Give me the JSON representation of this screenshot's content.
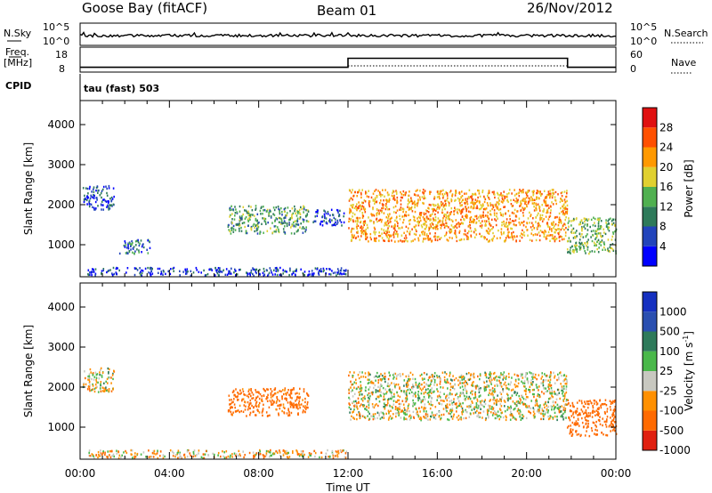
{
  "header": {
    "station": "Goose Bay (fitACF)",
    "beam": "Beam 01",
    "date": "26/Nov/2012"
  },
  "side_labels": {
    "nsky": "N.Sky",
    "nsearch": "N.Search",
    "freq_line1": "Freq.",
    "freq_line2": "[MHz]",
    "nave": "Nave",
    "cpid": "CPID",
    "cpid_value": "tau (fast) 503"
  },
  "colors": {
    "power_scale": [
      "#0000ff",
      "#2244bb",
      "#2e7a5a",
      "#50b050",
      "#e0d030",
      "#ff9900",
      "#ff5000",
      "#e01010"
    ],
    "velocity_scale": [
      "#1530c0",
      "#2a4fb0",
      "#2e7a5a",
      "#4ab84a",
      "#c8c8c0",
      "#ff9000",
      "#ff6a00",
      "#e02010"
    ]
  },
  "chart_data": [
    {
      "type": "line",
      "panel": "noise",
      "left_axis": {
        "label": "N.Sky",
        "ticks": [
          "10^5",
          "10^0"
        ]
      },
      "right_axis": {
        "label": "N.Search",
        "ticks": [
          "10^5",
          "10^0"
        ]
      },
      "series": [
        {
          "name": "N.Sky",
          "style": "solid",
          "values": "noise trace near 10^1 level across the day"
        },
        {
          "name": "N.Search",
          "style": "dotted"
        }
      ]
    },
    {
      "type": "line",
      "panel": "frequency",
      "left_axis": {
        "label": "Freq. [MHz]",
        "ticks": [
          8,
          18
        ]
      },
      "right_axis": {
        "label": "Nave",
        "ticks": [
          0,
          60
        ]
      },
      "series": [
        {
          "name": "Freq.",
          "x": [
            "00:00",
            "12:00",
            "12:00",
            "21:50",
            "21:50",
            "24:00"
          ],
          "y": [
            8.9,
            8.9,
            15.2,
            15.2,
            8.9,
            8.9
          ]
        },
        {
          "name": "Nave",
          "style": "dotted",
          "x": [
            "00:00",
            "24:00"
          ],
          "y": [
            8,
            8
          ]
        }
      ]
    },
    {
      "type": "heatmap",
      "panel": "power",
      "ylabel": "Slant Range [km]",
      "yticks": [
        1000,
        2000,
        3000,
        4000
      ],
      "ylim": [
        200,
        4600
      ],
      "xticks": [
        "00:00",
        "04:00",
        "08:00",
        "12:00",
        "16:00",
        "20:00",
        "00:00"
      ],
      "colorbar": {
        "label": "Power [dB]",
        "ticks": [
          4,
          8,
          12,
          16,
          20,
          24,
          28
        ]
      },
      "echo_regions": [
        {
          "t0": 0.1,
          "t1": 1.5,
          "r0": 1900,
          "r1": 2500,
          "power_db": 6
        },
        {
          "t0": 1.7,
          "t1": 3.1,
          "r0": 800,
          "r1": 1150,
          "power_db": 8
        },
        {
          "t0": 6.6,
          "t1": 10.2,
          "r0": 1300,
          "r1": 2000,
          "power_db": 12
        },
        {
          "t0": 10.4,
          "t1": 11.8,
          "r0": 1500,
          "r1": 1900,
          "power_db": 6
        },
        {
          "t0": 12.0,
          "t1": 21.8,
          "r0": 1100,
          "r1": 2400,
          "power_db": 22
        },
        {
          "t0": 21.8,
          "t1": 24.0,
          "r0": 800,
          "r1": 1700,
          "power_db": 14
        },
        {
          "t0": 0.3,
          "t1": 11.9,
          "r0": 250,
          "r1": 450,
          "power_db": 5
        }
      ]
    },
    {
      "type": "heatmap",
      "panel": "velocity",
      "ylabel": "Slant Range [km]",
      "yticks": [
        1000,
        2000,
        3000,
        4000
      ],
      "ylim": [
        200,
        4600
      ],
      "xticks": [
        "00:00",
        "04:00",
        "08:00",
        "12:00",
        "16:00",
        "20:00",
        "00:00"
      ],
      "xlabel": "Time UT",
      "colorbar": {
        "label": "Velocity [m s^-1]",
        "ticks": [
          1000,
          500,
          100,
          25,
          -25,
          -100,
          -500,
          -1000
        ]
      },
      "echo_regions": [
        {
          "t0": 0.1,
          "t1": 1.5,
          "r0": 1900,
          "r1": 2500,
          "velocity": 0
        },
        {
          "t0": 6.6,
          "t1": 10.2,
          "r0": 1300,
          "r1": 2000,
          "velocity": -200
        },
        {
          "t0": 12.0,
          "t1": 21.8,
          "r0": 1200,
          "r1": 2400,
          "velocity": 0
        },
        {
          "t0": 21.8,
          "t1": 24.0,
          "r0": 800,
          "r1": 1700,
          "velocity": -300
        },
        {
          "t0": 0.3,
          "t1": 11.9,
          "r0": 250,
          "r1": 450,
          "velocity": -50
        }
      ]
    }
  ]
}
